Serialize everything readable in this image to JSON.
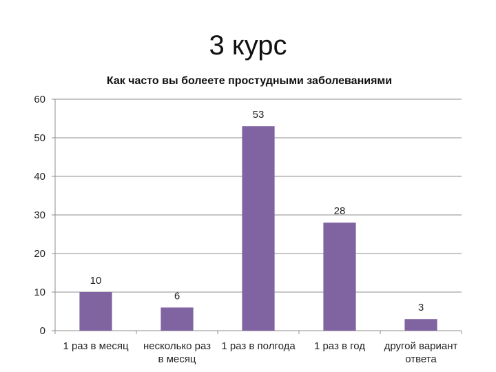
{
  "slide": {
    "title": "3 курс"
  },
  "chart_data": {
    "type": "bar",
    "title": "Как часто вы болеете простудными заболеваниями",
    "categories": [
      [
        "1 раз в месяц"
      ],
      [
        "несколько раз",
        "в месяц"
      ],
      [
        "1 раз в полгода"
      ],
      [
        "1 раз в год"
      ],
      [
        "другой вариант",
        "ответа"
      ]
    ],
    "values": [
      10,
      6,
      53,
      28,
      3
    ],
    "ylim": [
      0,
      60
    ],
    "yticks": [
      0,
      10,
      20,
      30,
      40,
      50,
      60
    ],
    "bar_color": "#8064a2",
    "grid": true,
    "legend": "none"
  }
}
